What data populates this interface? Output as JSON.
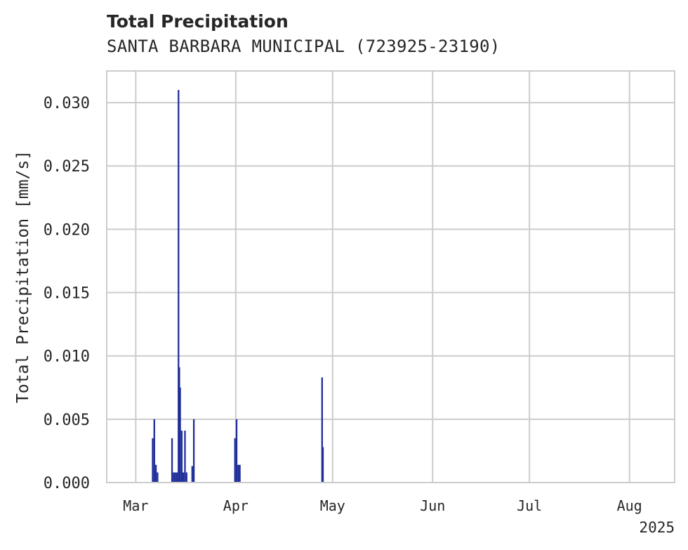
{
  "chart_data": {
    "type": "bar",
    "title": "Total Precipitation",
    "subtitle": "SANTA BARBARA MUNICIPAL (723925-23190)",
    "xlabel": "",
    "ylabel": "Total Precipitation [mm/s]",
    "ylim": [
      0,
      0.0325
    ],
    "yticks": [
      0.0,
      0.005,
      0.01,
      0.015,
      0.02,
      0.025,
      0.03
    ],
    "ytick_labels": [
      "0.000",
      "0.005",
      "0.010",
      "0.015",
      "0.020",
      "0.025",
      "0.030"
    ],
    "xlim": [
      "2025-02-20",
      "2025-08-15"
    ],
    "xticks": [
      "2025-03-01",
      "2025-04-01",
      "2025-05-01",
      "2025-06-01",
      "2025-07-01",
      "2025-08-01"
    ],
    "xtick_labels": [
      "Mar",
      "Apr",
      "May",
      "Jun",
      "Jul",
      "Aug"
    ],
    "year_label": "2025",
    "grid": true,
    "bar_color": "#1f2f99",
    "series": [
      {
        "x": [
          "2025-03-06T00:00",
          "2025-03-06T12:00",
          "2025-03-07T00:00",
          "2025-03-07T12:00",
          "2025-03-12T00:00",
          "2025-03-12T12:00",
          "2025-03-13T00:00",
          "2025-03-13T12:00",
          "2025-03-14T00:00",
          "2025-03-14T06:00",
          "2025-03-14T12:00",
          "2025-03-15T00:00",
          "2025-03-15T12:00",
          "2025-03-16T00:00",
          "2025-03-16T12:00",
          "2025-03-18T06:00",
          "2025-03-18T18:00",
          "2025-03-31T12:00",
          "2025-04-01T00:00",
          "2025-04-01T12:00",
          "2025-04-02T00:00",
          "2025-04-27T12:00",
          "2025-04-27T18:00"
        ],
        "values": [
          0.0035,
          0.005,
          0.0014,
          0.0008,
          0.0035,
          0.0008,
          0.0008,
          0.0008,
          0.031,
          0.0091,
          0.0075,
          0.0041,
          0.0008,
          0.0041,
          0.0008,
          0.0013,
          0.005,
          0.0035,
          0.005,
          0.0014,
          0.0014,
          0.0083,
          0.0028
        ]
      }
    ]
  }
}
